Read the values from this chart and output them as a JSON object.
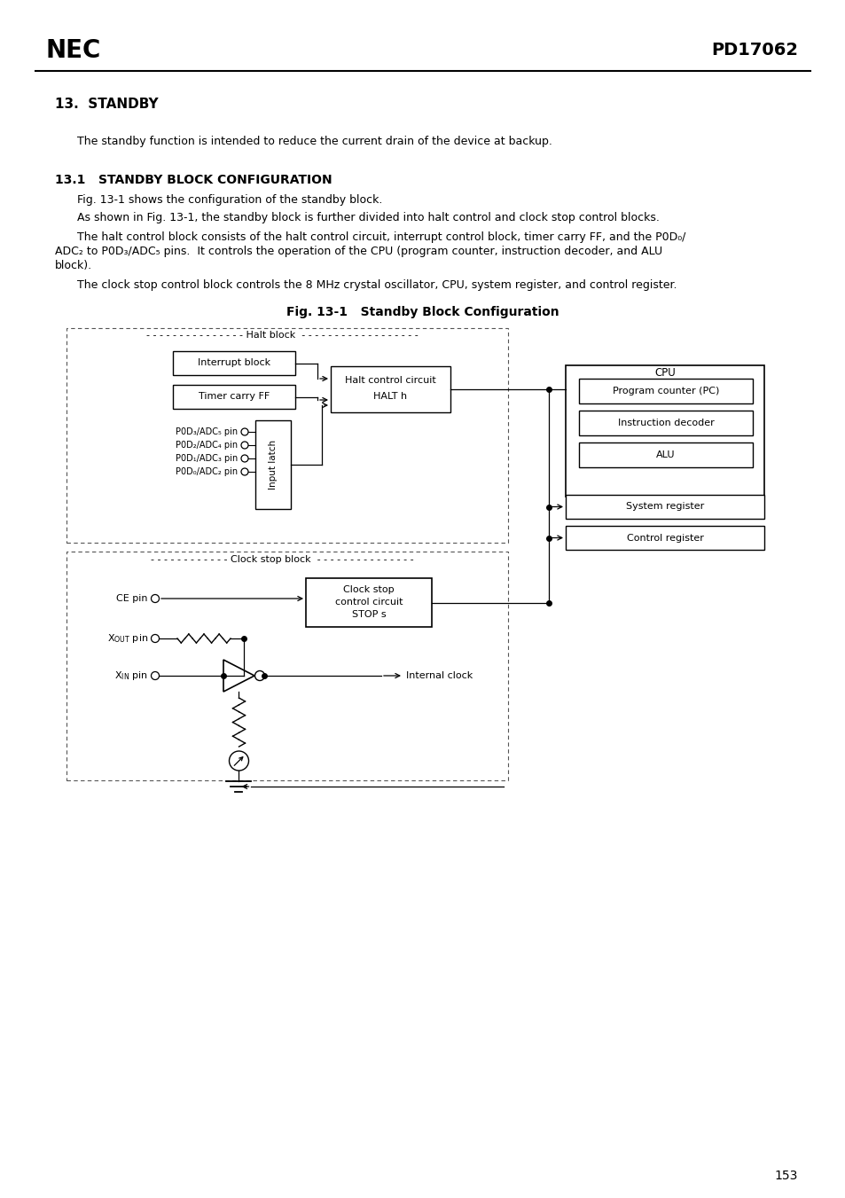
{
  "bg_color": "#ffffff",
  "header_left": "NEC",
  "header_right": "PD17062",
  "page_number": "153",
  "sec13": "13.  STANDBY",
  "para1": "The standby function is intended to reduce the current drain of the device at backup.",
  "sec131": "13.1   STANDBY BLOCK CONFIGURATION",
  "para2": "Fig. 13-1 shows the configuration of the standby block.",
  "para3": "As shown in Fig. 13-1, the standby block is further divided into halt control and clock stop control blocks.",
  "para4a": "The halt control block consists of the halt control circuit, interrupt control block, timer carry FF, and the P0D₀/",
  "para4b": "ADC₂ to P0D₃/ADC₅ pins.  It controls the operation of the CPU (program counter, instruction decoder, and ALU",
  "para4c": "block).",
  "para5": "The clock stop control block controls the 8 MHz crystal oscillator, CPU, system register, and control register.",
  "fig_title": "Fig. 13-1   Standby Block Configuration",
  "halt_block_lbl": "Halt block",
  "clock_block_lbl": "Clock stop block",
  "interrupt_block_lbl": "Interrupt block",
  "timer_ff_lbl": "Timer carry FF",
  "halt_cc_lbl1": "Halt control circuit",
  "halt_cc_lbl2": "HALT h",
  "input_latch_lbl": "Input latch",
  "cpu_lbl": "CPU",
  "pc_lbl": "Program counter (PC)",
  "id_lbl": "Instruction decoder",
  "alu_lbl": "ALU",
  "sysreg_lbl": "System register",
  "ctrlreg_lbl": "Control register",
  "csc_lbl1": "Clock stop",
  "csc_lbl2": "control circuit",
  "csc_lbl3": "STOP s",
  "ce_pin_lbl": "CE pin",
  "xout_pin_lbl": "X",
  "xout_sub": "OUT",
  "xout_rest": " pin",
  "xin_pin_lbl": "X",
  "xin_sub": "IN",
  "xin_rest": " pin",
  "internal_clock_lbl": "Internal clock",
  "pin_labels": [
    "P0D₃/ADC₅ pin",
    "P0D₂/ADC₄ pin",
    "P0D₁/ADC₃ pin",
    "P0D₀/ADC₂ pin"
  ]
}
